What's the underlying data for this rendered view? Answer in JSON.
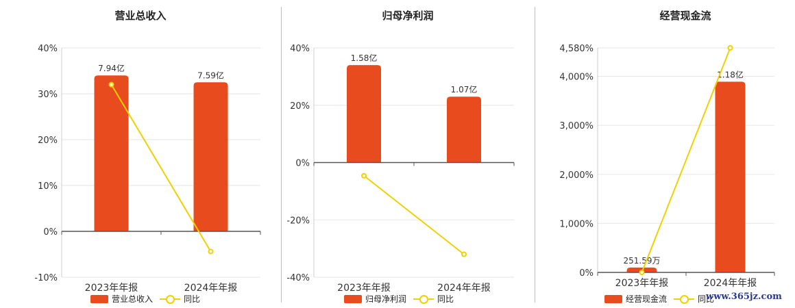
{
  "colors": {
    "bar": "#e84c1e",
    "line": "#f0d000",
    "grid": "#e6e6e6",
    "axis": "#555555"
  },
  "watermark": "www.365jz.com",
  "chart_data": [
    {
      "type": "bar",
      "title": "营业总收入",
      "categories": [
        "2023年年报",
        "2024年年报"
      ],
      "series": [
        {
          "name": "营业总收入",
          "kind": "bar",
          "values": [
            7.94,
            7.59
          ],
          "labels": [
            "7.94亿",
            "7.59亿"
          ]
        },
        {
          "name": "同比",
          "kind": "line",
          "values": [
            32,
            -4.4
          ]
        }
      ],
      "yaxis": {
        "ticks": [
          40,
          30,
          20,
          10,
          0,
          -10
        ],
        "tick_labels": [
          "40%",
          "30%",
          "20%",
          "10%",
          "0%",
          "-10%"
        ],
        "ylim": [
          -10,
          40
        ]
      },
      "grid": true,
      "legend": "bottom"
    },
    {
      "type": "bar",
      "title": "归母净利润",
      "categories": [
        "2023年年报",
        "2024年年报"
      ],
      "series": [
        {
          "name": "归母净利润",
          "kind": "bar",
          "values": [
            1.58,
            1.07
          ],
          "labels": [
            "1.58亿",
            "1.07亿"
          ]
        },
        {
          "name": "同比",
          "kind": "line",
          "values": [
            -4.6,
            -32
          ]
        }
      ],
      "yaxis": {
        "ticks": [
          40,
          20,
          0,
          -20,
          -40
        ],
        "tick_labels": [
          "40%",
          "20%",
          "0%",
          "-20%",
          "-40%"
        ],
        "ylim": [
          -40,
          40
        ]
      },
      "grid": true,
      "legend": "bottom"
    },
    {
      "type": "bar",
      "title": "经营现金流",
      "categories": [
        "2023年年报",
        "2024年年报"
      ],
      "series": [
        {
          "name": "经营现金流",
          "kind": "bar",
          "values": [
            0.025159,
            1.18
          ],
          "labels": [
            "251.59万",
            "1.18亿"
          ]
        },
        {
          "name": "同比",
          "kind": "line",
          "values": [
            0,
            4580
          ]
        }
      ],
      "yaxis": {
        "ticks": [
          4580,
          4000,
          3000,
          2000,
          1000,
          0
        ],
        "tick_labels": [
          "4,580%",
          "4,000%",
          "3,000%",
          "2,000%",
          "1,000%",
          "0%"
        ],
        "ylim": [
          0,
          4580
        ]
      },
      "grid": true,
      "legend": "bottom"
    }
  ]
}
